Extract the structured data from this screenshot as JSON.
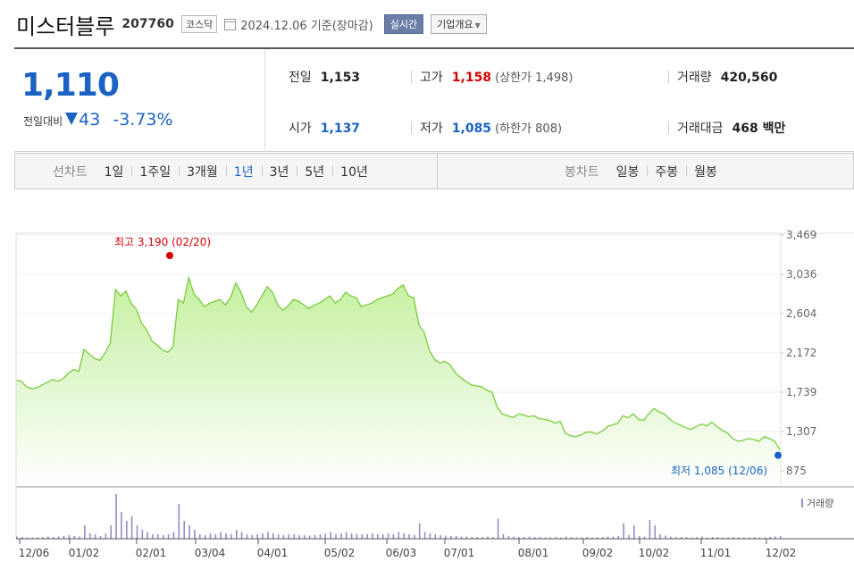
{
  "header": {
    "stock_name": "미스터블루",
    "stock_code": "207760",
    "market": "코스닥",
    "date_text": "2024.12.06 기준(장마감)",
    "realtime_label": "실시간",
    "company_label": "기업개요"
  },
  "price": {
    "current": "1,110",
    "change_label": "전일대비",
    "change_value": "43",
    "change_pct": "-3.73%"
  },
  "stats": {
    "prev_close_label": "전일",
    "prev_close": "1,153",
    "high_label": "고가",
    "high": "1,158",
    "upper_limit_text": "(상한가 1,498)",
    "volume_label": "거래량",
    "volume": "420,560",
    "open_label": "시가",
    "open": "1,137",
    "low_label": "저가",
    "low": "1,085",
    "lower_limit_text": "(하한가 808)",
    "amount_label": "거래대금",
    "amount": "468 백만"
  },
  "period_bar": {
    "line_label": "선차트",
    "line_items": [
      "1일",
      "1주일",
      "3개월",
      "1년",
      "3년",
      "5년",
      "10년"
    ],
    "line_active": "1년",
    "candle_label": "봉차트",
    "candle_items": [
      "일봉",
      "주봉",
      "월봉"
    ]
  },
  "colors": {
    "price_down": "#1a63c5",
    "price_up": "#d60000",
    "line": "#7acc3c",
    "area_top": "#c4f0a0",
    "volume_bar": "#8f8fc6"
  },
  "chart_data": {
    "type": "area",
    "y_ticks": [
      "3,469",
      "3,036",
      "2,604",
      "2,172",
      "1,739",
      "1,307",
      "875"
    ],
    "ylim": [
      875,
      3469
    ],
    "x_tick_labels": [
      "12/06",
      "01/02",
      "02/01",
      "03/04",
      "04/01",
      "05/02",
      "06/03",
      "07/01",
      "08/01",
      "09/02",
      "10/02",
      "11/01",
      "12/02"
    ],
    "high_annotation": "최고 3,190 (02/20)",
    "low_annotation": "최저 1,085 (12/06)",
    "high_value": 3190,
    "low_value": 1085,
    "volume_legend": "거래량",
    "series": [
      {
        "values": [
          1870,
          1860,
          1800,
          1780,
          1790,
          1820,
          1850,
          1880,
          1860,
          1890,
          1950,
          1990,
          1970,
          2210,
          2160,
          2110,
          2090,
          2170,
          2280,
          2870,
          2800,
          2850,
          2720,
          2650,
          2500,
          2420,
          2300,
          2260,
          2200,
          2180,
          2240,
          2760,
          2720,
          3000,
          2820,
          2760,
          2680,
          2720,
          2740,
          2760,
          2700,
          2780,
          2940,
          2840,
          2680,
          2620,
          2700,
          2800,
          2900,
          2840,
          2700,
          2640,
          2690,
          2760,
          2740,
          2700,
          2660,
          2700,
          2720,
          2760,
          2800,
          2720,
          2760,
          2840,
          2800,
          2780,
          2680,
          2700,
          2720,
          2760,
          2780,
          2800,
          2820,
          2880,
          2920,
          2800,
          2780,
          2480,
          2400,
          2200,
          2100,
          2060,
          2080,
          2040,
          1950,
          1900,
          1860,
          1820,
          1810,
          1800,
          1760,
          1740,
          1570,
          1500,
          1480,
          1460,
          1500,
          1490,
          1470,
          1480,
          1450,
          1440,
          1430,
          1400,
          1420,
          1290,
          1260,
          1250,
          1270,
          1300,
          1300,
          1280,
          1310,
          1360,
          1380,
          1400,
          1480,
          1460,
          1500,
          1440,
          1430,
          1510,
          1560,
          1520,
          1500,
          1440,
          1400,
          1380,
          1350,
          1330,
          1360,
          1390,
          1370,
          1410,
          1360,
          1320,
          1290,
          1230,
          1200,
          1210,
          1230,
          1220,
          1200,
          1250,
          1230,
          1200,
          1110
        ]
      }
    ],
    "volume_values": [
      0.05,
      0.04,
      0.03,
      0.03,
      0.03,
      0.04,
      0.05,
      0.04,
      0.05,
      0.06,
      0.08,
      0.06,
      0.05,
      0.3,
      0.12,
      0.1,
      0.06,
      0.12,
      0.3,
      1.0,
      0.6,
      0.4,
      0.5,
      0.3,
      0.2,
      0.15,
      0.1,
      0.1,
      0.08,
      0.1,
      0.15,
      0.78,
      0.4,
      0.3,
      0.2,
      0.1,
      0.08,
      0.12,
      0.1,
      0.15,
      0.12,
      0.1,
      0.2,
      0.15,
      0.1,
      0.08,
      0.1,
      0.12,
      0.15,
      0.12,
      0.1,
      0.08,
      0.1,
      0.1,
      0.08,
      0.08,
      0.07,
      0.08,
      0.1,
      0.12,
      0.15,
      0.1,
      0.12,
      0.15,
      0.12,
      0.1,
      0.1,
      0.1,
      0.12,
      0.1,
      0.1,
      0.12,
      0.1,
      0.15,
      0.12,
      0.1,
      0.08,
      0.35,
      0.15,
      0.12,
      0.1,
      0.08,
      0.07,
      0.06,
      0.06,
      0.05,
      0.05,
      0.04,
      0.04,
      0.04,
      0.05,
      0.04,
      0.45,
      0.1,
      0.06,
      0.05,
      0.04,
      0.04,
      0.05,
      0.04,
      0.04,
      0.03,
      0.03,
      0.04,
      0.03,
      0.05,
      0.04,
      0.03,
      0.03,
      0.04,
      0.03,
      0.03,
      0.04,
      0.05,
      0.05,
      0.06,
      0.35,
      0.08,
      0.3,
      0.06,
      0.05,
      0.42,
      0.3,
      0.1,
      0.07,
      0.05,
      0.04,
      0.04,
      0.04,
      0.03,
      0.04,
      0.05,
      0.03,
      0.04,
      0.04,
      0.03,
      0.03,
      0.04,
      0.03,
      0.03,
      0.03,
      0.04,
      0.03,
      0.03,
      0.04,
      0.05,
      0.06
    ]
  }
}
